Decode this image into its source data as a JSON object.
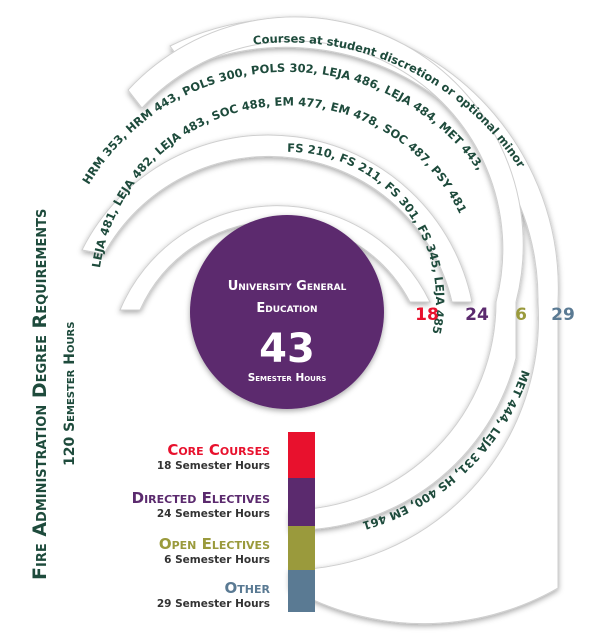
{
  "title": "Fire Administration Degree Requirements",
  "subtitle": "120 Semester Hours",
  "center": {
    "line1": "University General",
    "line2": "Education",
    "number": "43",
    "unit": "Semester Hours"
  },
  "rings": [
    {
      "value": "18",
      "color": "#e8112d",
      "courses": "FS 210, FS 211, FS 301, FS 345, LEJA 485"
    },
    {
      "value": "24",
      "color": "#5b2a6e",
      "courses": "LEJA 481, LEJA 482, LEJA 483, SOC 488, EM 477, EM 478, SOC 487, PSY 481"
    },
    {
      "value": "6",
      "color": "#9a9a3c",
      "courses": "HRM 353, HRM 443, POLS 300, POLS 302, LEJA 486, LEJA 484, MET 443,",
      "courses_lower": "MET 444, LEJA 331, HS 400, EM 461"
    },
    {
      "value": "29",
      "color": "#5a7a93",
      "courses": "Courses at student discretion or optional minor"
    }
  ],
  "legend": [
    {
      "title": "Core Courses",
      "hours": "18 Semester Hours",
      "color": "#e8112d"
    },
    {
      "title": "Directed Electives",
      "hours": "24 Semester Hours",
      "color": "#5b2a6e"
    },
    {
      "title": "Open Electives",
      "hours": "6 Semester Hours",
      "color": "#9a9a3c"
    },
    {
      "title": "Other",
      "hours": "29 Semester Hours",
      "color": "#5a7a93"
    }
  ],
  "colors": {
    "title": "#1e4b3c",
    "center": "#5b2a6e",
    "ring_text": "#1e4b3c",
    "band": "#e6e6e6"
  }
}
